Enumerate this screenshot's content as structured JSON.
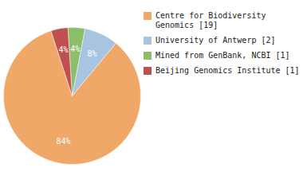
{
  "chart_data": {
    "type": "pie",
    "categories": [
      "Centre for Biodiversity\nGenomics [19]",
      "University of Antwerp [2]",
      "Mined from GenBank, NCBI [1]",
      "Beijing Genomics Institute [1]"
    ],
    "values": [
      84,
      8,
      4,
      4
    ],
    "value_labels": [
      "84%",
      "8%",
      "4%",
      "4%"
    ],
    "colors": [
      "#f0a868",
      "#a8c4e0",
      "#8dbf6a",
      "#c05050"
    ],
    "data_labels": true,
    "legend": "right"
  }
}
